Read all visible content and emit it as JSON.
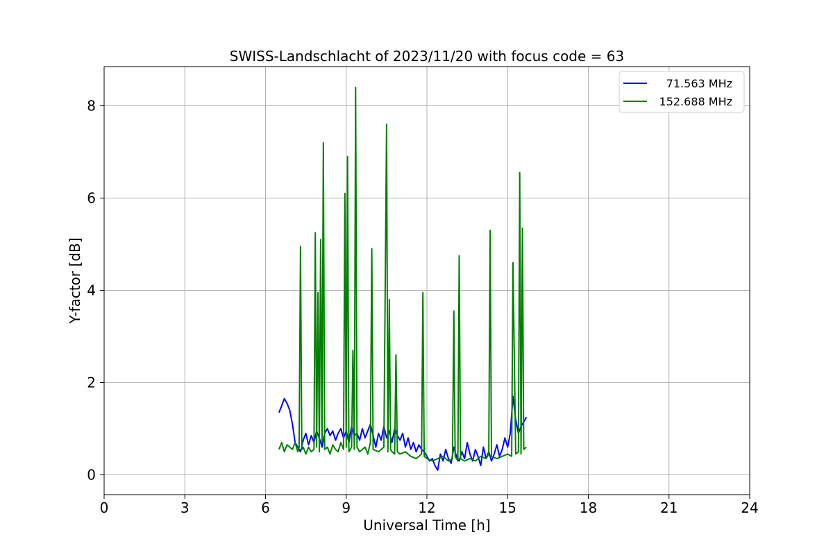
{
  "chart_data": {
    "type": "line",
    "title": "SWISS-Landschlacht of 2023/11/20 with focus code = 63",
    "xlabel": "Universal Time [h]",
    "ylabel": "Y-factor [dB]",
    "xlim": [
      0,
      24
    ],
    "ylim": [
      -0.43,
      8.85
    ],
    "x_ticks": [
      0,
      3,
      6,
      9,
      12,
      15,
      18,
      21,
      24
    ],
    "x_tick_labels": [
      "0",
      "3",
      "6",
      "9",
      "12",
      "15",
      "18",
      "21",
      "24"
    ],
    "y_ticks": [
      0,
      2,
      4,
      6,
      8
    ],
    "y_tick_labels": [
      "0",
      "2",
      "4",
      "6",
      "8"
    ],
    "grid": true,
    "legend_position": "top-right",
    "series": [
      {
        "name": "71.563 MHz",
        "color": "#0000ff",
        "x": [
          6.5,
          6.6,
          6.7,
          6.8,
          6.9,
          7.0,
          7.1,
          7.2,
          7.3,
          7.4,
          7.5,
          7.6,
          7.7,
          7.8,
          7.9,
          8.0,
          8.1,
          8.2,
          8.3,
          8.4,
          8.5,
          8.6,
          8.7,
          8.8,
          8.9,
          9.0,
          9.1,
          9.2,
          9.3,
          9.4,
          9.5,
          9.6,
          9.7,
          9.8,
          9.9,
          10.0,
          10.1,
          10.2,
          10.3,
          10.4,
          10.5,
          10.6,
          10.7,
          10.8,
          10.9,
          11.0,
          11.1,
          11.2,
          11.3,
          11.4,
          11.5,
          11.6,
          11.7,
          11.8,
          11.9,
          12.0,
          12.1,
          12.2,
          12.3,
          12.4,
          12.5,
          12.6,
          12.7,
          12.8,
          12.9,
          13.0,
          13.1,
          13.2,
          13.3,
          13.4,
          13.5,
          13.6,
          13.7,
          13.8,
          13.9,
          14.0,
          14.1,
          14.2,
          14.3,
          14.4,
          14.5,
          14.6,
          14.7,
          14.8,
          14.9,
          15.0,
          15.1,
          15.2,
          15.3,
          15.4,
          15.5,
          15.6,
          15.7
        ],
        "y": [
          1.35,
          1.5,
          1.65,
          1.55,
          1.4,
          1.1,
          0.7,
          0.6,
          0.5,
          0.75,
          0.9,
          0.65,
          0.85,
          0.7,
          0.95,
          0.8,
          0.6,
          0.9,
          1.0,
          0.85,
          0.95,
          0.75,
          0.9,
          1.0,
          0.8,
          0.95,
          0.7,
          1.05,
          0.85,
          0.9,
          0.75,
          1.0,
          0.8,
          0.95,
          1.1,
          0.85,
          0.6,
          0.9,
          0.75,
          1.05,
          0.8,
          0.95,
          0.7,
          1.0,
          0.85,
          0.75,
          0.9,
          0.6,
          0.8,
          0.55,
          0.7,
          0.5,
          0.65,
          0.55,
          0.5,
          0.4,
          0.3,
          0.35,
          0.2,
          0.1,
          0.45,
          0.3,
          0.55,
          0.35,
          0.25,
          0.6,
          0.4,
          0.3,
          0.5,
          0.35,
          0.7,
          0.45,
          0.3,
          0.55,
          0.4,
          0.2,
          0.6,
          0.35,
          0.5,
          0.3,
          0.45,
          0.65,
          0.4,
          0.55,
          0.8,
          0.6,
          0.9,
          1.7,
          1.2,
          0.9,
          1.05,
          1.15,
          1.25
        ]
      },
      {
        "name": "152.688 MHz",
        "color": "#008000",
        "x": [
          6.5,
          6.6,
          6.7,
          6.8,
          6.9,
          7.0,
          7.1,
          7.2,
          7.25,
          7.3,
          7.35,
          7.4,
          7.5,
          7.6,
          7.7,
          7.8,
          7.85,
          7.9,
          7.95,
          8.0,
          8.05,
          8.1,
          8.15,
          8.2,
          8.3,
          8.4,
          8.5,
          8.6,
          8.7,
          8.8,
          8.9,
          8.95,
          9.0,
          9.05,
          9.1,
          9.2,
          9.25,
          9.3,
          9.35,
          9.4,
          9.5,
          9.6,
          9.7,
          9.8,
          9.9,
          9.95,
          10.0,
          10.2,
          10.4,
          10.5,
          10.55,
          10.6,
          10.65,
          10.7,
          10.8,
          10.85,
          10.9,
          11.0,
          11.2,
          11.4,
          11.6,
          11.8,
          11.85,
          11.9,
          12.0,
          12.2,
          12.4,
          12.6,
          12.8,
          12.95,
          13.0,
          13.05,
          13.15,
          13.2,
          13.25,
          13.4,
          13.6,
          13.8,
          14.0,
          14.2,
          14.3,
          14.35,
          14.4,
          14.6,
          14.8,
          15.0,
          15.15,
          15.2,
          15.3,
          15.4,
          15.45,
          15.5,
          15.55,
          15.6,
          15.7
        ],
        "y": [
          0.55,
          0.7,
          0.5,
          0.65,
          0.6,
          0.55,
          0.7,
          0.5,
          0.6,
          4.95,
          0.55,
          0.6,
          0.45,
          0.6,
          0.5,
          0.55,
          5.25,
          0.6,
          3.95,
          0.5,
          5.1,
          0.7,
          7.2,
          0.55,
          0.6,
          0.45,
          0.65,
          0.55,
          0.5,
          0.7,
          0.55,
          6.1,
          0.6,
          6.9,
          0.5,
          0.6,
          2.7,
          0.55,
          8.4,
          0.6,
          0.5,
          0.55,
          0.6,
          0.45,
          0.7,
          4.9,
          0.55,
          0.5,
          0.6,
          7.6,
          0.5,
          3.8,
          0.55,
          0.5,
          0.45,
          2.6,
          0.5,
          0.45,
          0.5,
          0.4,
          0.35,
          0.45,
          3.95,
          0.4,
          0.35,
          0.3,
          0.35,
          0.4,
          0.3,
          0.35,
          3.55,
          0.4,
          0.3,
          4.75,
          0.35,
          0.3,
          0.35,
          0.3,
          0.4,
          0.35,
          0.45,
          5.3,
          0.4,
          0.35,
          0.4,
          0.45,
          0.4,
          4.6,
          0.45,
          0.5,
          6.55,
          0.45,
          5.35,
          0.55,
          0.6
        ]
      }
    ]
  }
}
